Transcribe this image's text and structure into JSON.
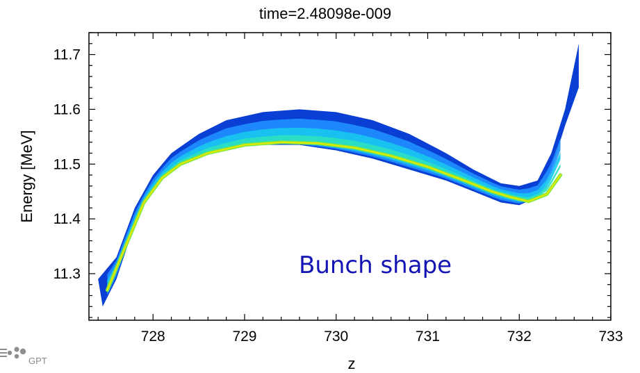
{
  "chart_data": {
    "type": "scatter",
    "title": "time=2.48098e-009",
    "xlabel": "z",
    "ylabel": "Energy [MeV]",
    "xlim": [
      727.3,
      733.0
    ],
    "ylim": [
      11.215,
      11.74
    ],
    "xticks": [
      728,
      729,
      730,
      731,
      732,
      733
    ],
    "yticks": [
      11.3,
      11.4,
      11.5,
      11.6,
      11.7
    ],
    "xtick_labels": [
      "728",
      "729",
      "730",
      "731",
      "732",
      "733"
    ],
    "ytick_labels": [
      "11.3",
      "11.4",
      "11.5",
      "11.6",
      "11.7"
    ],
    "annotation": "Bunch shape",
    "grid": false,
    "colormap": [
      "#0a3fd6",
      "#1e90ff",
      "#19c8f0",
      "#2fe0c0",
      "#7fe840",
      "#e8e800",
      "#ff8000"
    ],
    "series": [
      {
        "role": "lower-edge",
        "x": [
          727.45,
          727.6,
          727.8,
          728.0,
          728.2,
          728.5,
          728.8,
          729.2,
          729.6,
          730.0,
          730.4,
          730.8,
          731.2,
          731.5,
          731.8,
          732.0,
          732.2,
          732.35,
          732.5,
          732.65
        ],
        "y": [
          11.24,
          11.29,
          11.39,
          11.46,
          11.49,
          11.515,
          11.53,
          11.535,
          11.535,
          11.525,
          11.51,
          11.49,
          11.47,
          11.45,
          11.43,
          11.425,
          11.44,
          11.49,
          11.57,
          11.64
        ]
      },
      {
        "role": "upper-edge",
        "x": [
          727.4,
          727.6,
          727.8,
          728.0,
          728.2,
          728.5,
          728.8,
          729.2,
          729.6,
          730.0,
          730.4,
          730.8,
          731.2,
          731.5,
          731.8,
          732.0,
          732.2,
          732.35,
          732.5,
          732.65
        ],
        "y": [
          11.29,
          11.33,
          11.42,
          11.48,
          11.52,
          11.555,
          11.58,
          11.595,
          11.6,
          11.595,
          11.58,
          11.555,
          11.52,
          11.49,
          11.465,
          11.46,
          11.47,
          11.52,
          11.6,
          11.72
        ]
      },
      {
        "role": "core",
        "x": [
          727.5,
          727.7,
          727.9,
          728.1,
          728.3,
          728.6,
          729.0,
          729.4,
          729.8,
          730.2,
          730.6,
          731.0,
          731.4,
          731.7,
          731.9,
          732.1,
          732.3,
          732.45
        ],
        "y": [
          11.27,
          11.35,
          11.43,
          11.475,
          11.5,
          11.52,
          11.535,
          11.54,
          11.538,
          11.53,
          11.515,
          11.495,
          11.47,
          11.45,
          11.44,
          11.432,
          11.445,
          11.48
        ]
      }
    ]
  },
  "logo": {
    "text": "GPT"
  }
}
